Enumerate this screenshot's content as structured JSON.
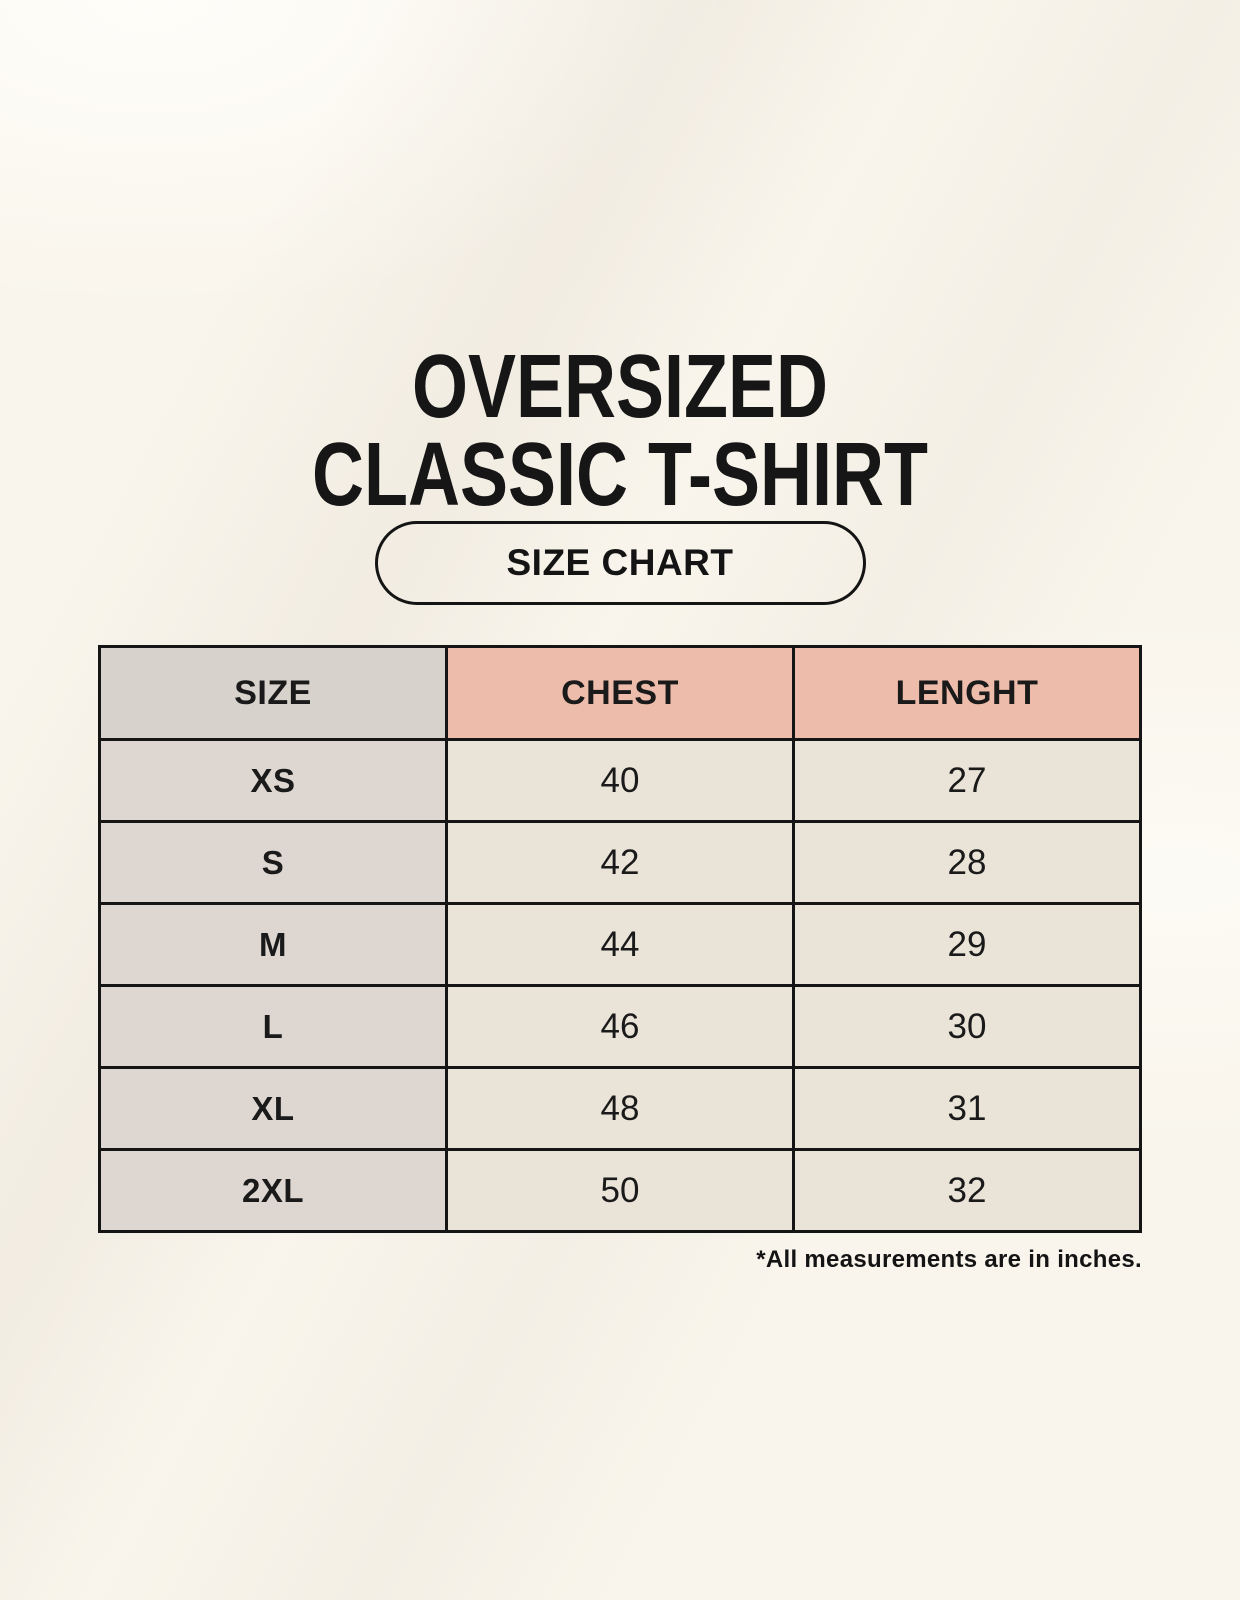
{
  "page": {
    "title_line1": "OVERSIZED",
    "title_line2": "CLASSIC T-SHIRT",
    "badge_label": "SIZE CHART",
    "footnote": "*All measurements are in inches."
  },
  "chart_data": {
    "type": "table",
    "title": "OVERSIZED CLASSIC T-SHIRT",
    "subtitle": "SIZE CHART",
    "columns": [
      "SIZE",
      "CHEST",
      "LENGHT"
    ],
    "rows": [
      [
        "XS",
        "40",
        "27"
      ],
      [
        "S",
        "42",
        "28"
      ],
      [
        "M",
        "44",
        "29"
      ],
      [
        "L",
        "46",
        "30"
      ],
      [
        "XL",
        "48",
        "31"
      ],
      [
        "2XL",
        "50",
        "32"
      ]
    ],
    "note": "*All measurements are in inches."
  },
  "colors": {
    "background": "#f9f5ec",
    "header_pink": "#eebcab",
    "header_gray": "#d8d2cc",
    "column_gray": "#ded7d1",
    "cell_cream": "#eae3d8",
    "border": "#151515"
  }
}
